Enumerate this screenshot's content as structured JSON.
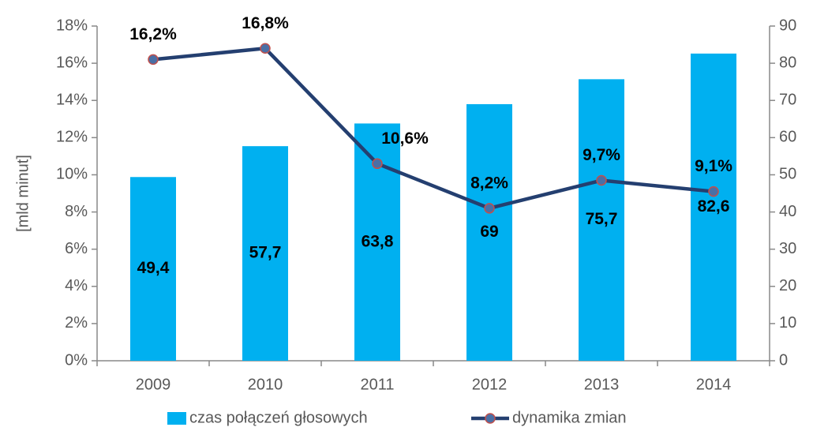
{
  "chart_data": {
    "type": "bar-line",
    "y_label": "[mld minut]",
    "categories": [
      "2009",
      "2010",
      "2011",
      "2012",
      "2013",
      "2014"
    ],
    "series": [
      {
        "name": "czas połączeń głosowych",
        "type": "bar",
        "axis": "y2",
        "color": "#00b0f0",
        "values": [
          49.4,
          57.7,
          63.8,
          69,
          75.7,
          82.6
        ],
        "value_labels": [
          "49,4",
          "57,7",
          "63,8",
          "69",
          "75,7",
          "82,6"
        ]
      },
      {
        "name": "dynamika zmian",
        "type": "line",
        "axis": "y",
        "color": "#243f70",
        "marker_color": "#4a6fa5",
        "marker_edge": "#c0504d",
        "values": [
          16.2,
          16.8,
          10.6,
          8.2,
          9.7,
          9.1
        ],
        "value_labels": [
          "16,2%",
          "16,8%",
          "10,6%",
          "8,2%",
          "9,7%",
          "9,1%"
        ]
      }
    ],
    "ylim": [
      0,
      18
    ],
    "yticks": [
      {
        "value": 0,
        "label": "0%"
      },
      {
        "value": 2,
        "label": "2%"
      },
      {
        "value": 4,
        "label": "4%"
      },
      {
        "value": 6,
        "label": "6%"
      },
      {
        "value": 8,
        "label": "8%"
      },
      {
        "value": 10,
        "label": "10%"
      },
      {
        "value": 12,
        "label": "12%"
      },
      {
        "value": 14,
        "label": "14%"
      },
      {
        "value": 16,
        "label": "16%"
      },
      {
        "value": 18,
        "label": "18%"
      }
    ],
    "y2lim": [
      0,
      90
    ],
    "y2ticks": [
      0,
      10,
      20,
      30,
      40,
      50,
      60,
      70,
      80,
      90
    ],
    "legend": "bottom"
  }
}
